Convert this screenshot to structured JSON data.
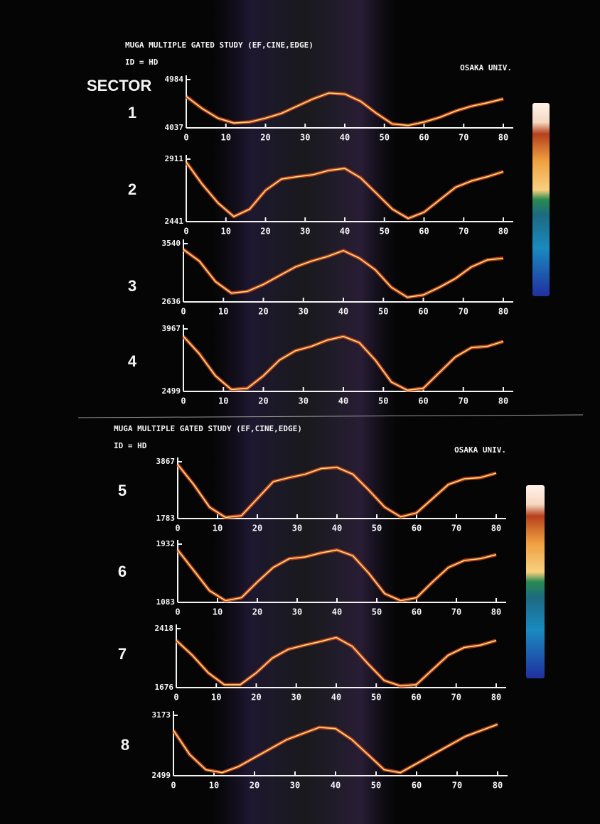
{
  "panels": [
    {
      "title": "MUGA MULTIPLE GATED STUDY (EF,CINE,EDGE)",
      "id": "ID = HD",
      "institution": "OSAKA UNIV."
    },
    {
      "title": "MUGA MULTIPLE GATED STUDY (EF,CINE,EDGE)",
      "id": "ID = HD",
      "institution": "OSAKA UNIV."
    }
  ],
  "sector_heading": "SECTOR",
  "chart_data": [
    {
      "type": "line",
      "title": "1",
      "x": [
        0,
        4,
        8,
        12,
        16,
        20,
        24,
        28,
        32,
        36,
        40,
        44,
        48,
        52,
        56,
        60,
        64,
        68,
        72,
        76,
        80
      ],
      "xlim": [
        0,
        80
      ],
      "xticks": [
        0,
        10,
        20,
        30,
        40,
        50,
        60,
        70,
        80
      ],
      "ylim": [
        4037,
        4984
      ],
      "yticks": [
        4037,
        4984
      ],
      "series": [
        {
          "color": "#f2e27a",
          "values": [
            4653,
            4416,
            4226,
            4132,
            4151,
            4226,
            4321,
            4463,
            4605,
            4719,
            4700,
            4558,
            4321,
            4113,
            4084,
            4151,
            4245,
            4368,
            4463,
            4529,
            4605
          ]
        }
      ]
    },
    {
      "type": "line",
      "title": "2",
      "x": [
        0,
        4,
        8,
        12,
        16,
        20,
        24,
        28,
        32,
        36,
        40,
        44,
        48,
        52,
        56,
        60,
        64,
        68,
        72,
        76,
        80
      ],
      "xlim": [
        0,
        80
      ],
      "xticks": [
        0,
        10,
        20,
        30,
        40,
        50,
        60,
        70,
        80
      ],
      "ylim": [
        2441,
        2911
      ],
      "yticks": [
        2441,
        2911
      ],
      "series": [
        {
          "color": "#f2e27a",
          "values": [
            2888,
            2723,
            2582,
            2479,
            2535,
            2676,
            2761,
            2779,
            2794,
            2826,
            2841,
            2770,
            2653,
            2535,
            2465,
            2512,
            2606,
            2700,
            2747,
            2779,
            2817
          ]
        }
      ]
    },
    {
      "type": "line",
      "title": "3",
      "x": [
        0,
        4,
        8,
        12,
        16,
        20,
        24,
        28,
        32,
        36,
        40,
        44,
        48,
        52,
        56,
        60,
        64,
        68,
        72,
        76,
        80
      ],
      "xlim": [
        0,
        80
      ],
      "xticks": [
        0,
        10,
        20,
        30,
        40,
        50,
        60,
        70,
        80
      ],
      "ylim": [
        2636,
        3540
      ],
      "yticks": [
        2636,
        3540
      ],
      "series": [
        {
          "color": "#f2e27a",
          "values": [
            3450,
            3269,
            2952,
            2772,
            2799,
            2907,
            3043,
            3178,
            3269,
            3341,
            3432,
            3314,
            3133,
            2862,
            2708,
            2744,
            2862,
            2998,
            3178,
            3287,
            3314
          ]
        }
      ]
    },
    {
      "type": "line",
      "title": "4",
      "x": [
        0,
        4,
        8,
        12,
        16,
        20,
        24,
        28,
        32,
        36,
        40,
        44,
        48,
        52,
        56,
        60,
        64,
        68,
        72,
        76,
        80
      ],
      "xlim": [
        0,
        80
      ],
      "xticks": [
        0,
        10,
        20,
        30,
        40,
        50,
        60,
        70,
        80
      ],
      "ylim": [
        2499,
        3967
      ],
      "yticks": [
        2499,
        3967
      ],
      "series": [
        {
          "color": "#f2e27a",
          "values": [
            3791,
            3380,
            2866,
            2543,
            2572,
            2866,
            3233,
            3453,
            3556,
            3703,
            3791,
            3644,
            3233,
            2719,
            2528,
            2572,
            2939,
            3306,
            3527,
            3556,
            3673
          ]
        }
      ]
    },
    {
      "type": "line",
      "title": "5",
      "x": [
        0,
        4,
        8,
        12,
        16,
        20,
        24,
        28,
        32,
        36,
        40,
        44,
        48,
        52,
        56,
        60,
        64,
        68,
        72,
        76,
        80
      ],
      "xlim": [
        0,
        80
      ],
      "xticks": [
        0,
        10,
        20,
        30,
        40,
        50,
        60,
        70,
        80
      ],
      "ylim": [
        1783,
        3867
      ],
      "yticks": [
        1783,
        3867
      ],
      "series": [
        {
          "color": "#f2e27a",
          "values": [
            3763,
            3033,
            2200,
            1825,
            1887,
            2512,
            3138,
            3283,
            3409,
            3617,
            3659,
            3409,
            2825,
            2200,
            1846,
            1991,
            2512,
            3033,
            3242,
            3283,
            3450
          ]
        }
      ]
    },
    {
      "type": "line",
      "title": "6",
      "x": [
        0,
        4,
        8,
        12,
        16,
        20,
        24,
        28,
        32,
        36,
        40,
        44,
        48,
        52,
        56,
        60,
        64,
        68,
        72,
        76,
        80
      ],
      "xlim": [
        0,
        80
      ],
      "xticks": [
        0,
        10,
        20,
        30,
        40,
        50,
        60,
        70,
        80
      ],
      "ylim": [
        1083,
        1932
      ],
      "yticks": [
        1083,
        1932
      ],
      "series": [
        {
          "color": "#f2e27a",
          "values": [
            1847,
            1550,
            1253,
            1108,
            1151,
            1380,
            1592,
            1720,
            1745,
            1805,
            1847,
            1762,
            1508,
            1210,
            1108,
            1151,
            1380,
            1592,
            1694,
            1720,
            1779
          ]
        }
      ]
    },
    {
      "type": "line",
      "title": "7",
      "x": [
        0,
        4,
        8,
        12,
        16,
        20,
        24,
        28,
        32,
        36,
        40,
        44,
        48,
        52,
        56,
        60,
        64,
        68,
        72,
        76,
        80
      ],
      "xlim": [
        0,
        80
      ],
      "xticks": [
        0,
        10,
        20,
        30,
        40,
        50,
        60,
        70,
        80
      ],
      "ylim": [
        1676,
        2418
      ],
      "yticks": [
        1676,
        2418
      ],
      "series": [
        {
          "color": "#f2e27a",
          "values": [
            2270,
            2084,
            1862,
            1713,
            1713,
            1862,
            2047,
            2158,
            2210,
            2255,
            2307,
            2195,
            1973,
            1765,
            1698,
            1713,
            1899,
            2084,
            2181,
            2210,
            2270
          ]
        }
      ]
    },
    {
      "type": "line",
      "title": "8",
      "x": [
        0,
        4,
        8,
        12,
        16,
        20,
        24,
        28,
        32,
        36,
        40,
        44,
        48,
        52,
        56,
        60,
        64,
        68,
        72,
        76,
        80
      ],
      "xlim": [
        0,
        80
      ],
      "xticks": [
        0,
        10,
        20,
        30,
        40,
        50,
        60,
        70,
        80
      ],
      "ylim": [
        2499,
        3173
      ],
      "yticks": [
        2499,
        3173
      ],
      "series": [
        {
          "color": "#f2e27a",
          "values": [
            3005,
            2735,
            2566,
            2533,
            2600,
            2701,
            2802,
            2903,
            2971,
            3038,
            3025,
            2903,
            2735,
            2566,
            2533,
            2634,
            2735,
            2836,
            2937,
            3005,
            3072
          ]
        }
      ]
    }
  ]
}
